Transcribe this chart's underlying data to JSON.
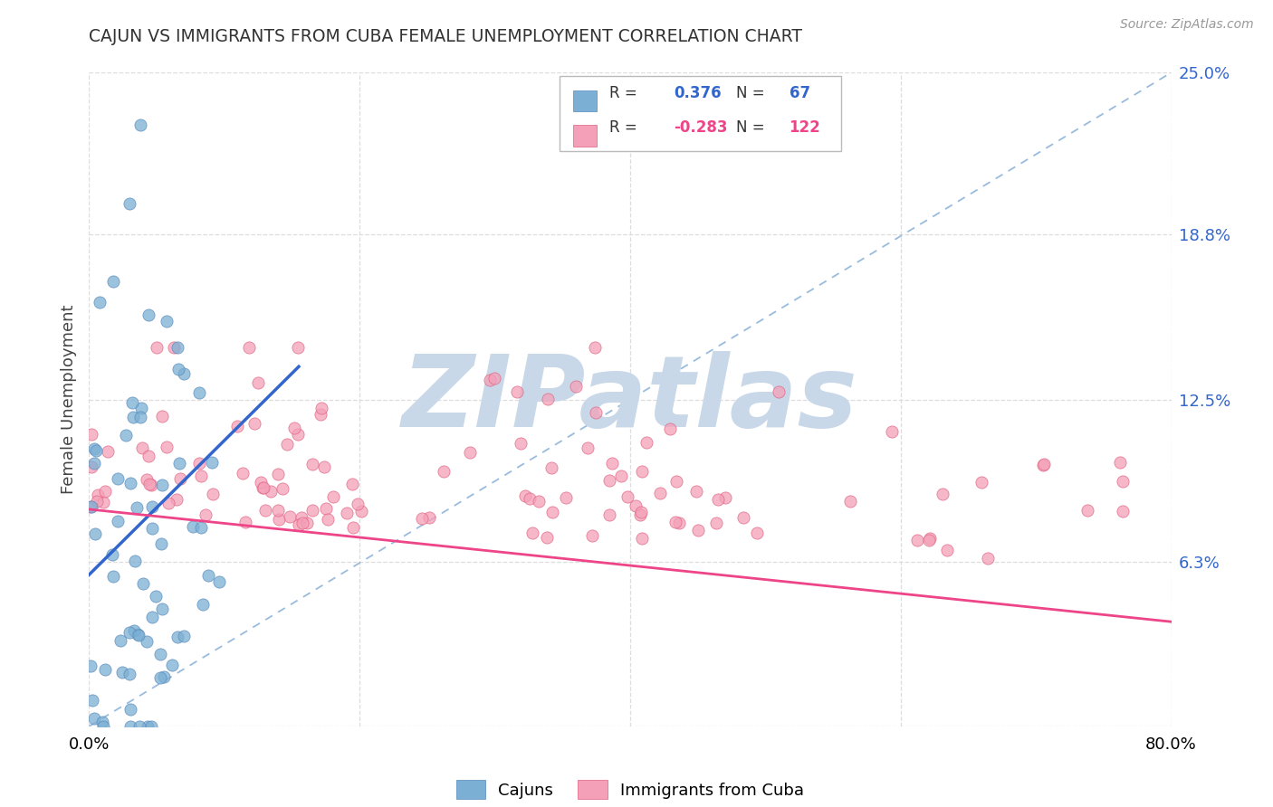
{
  "title": "CAJUN VS IMMIGRANTS FROM CUBA FEMALE UNEMPLOYMENT CORRELATION CHART",
  "source": "Source: ZipAtlas.com",
  "ylabel": "Female Unemployment",
  "xlim": [
    0,
    0.8
  ],
  "ylim": [
    0,
    0.25
  ],
  "xtick_values": [
    0.0,
    0.2,
    0.4,
    0.6,
    0.8
  ],
  "xticklabels": [
    "0.0%",
    "",
    "",
    "",
    "80.0%"
  ],
  "ytick_right_values": [
    0.0,
    0.063,
    0.125,
    0.188,
    0.25
  ],
  "ytick_right_labels": [
    "",
    "6.3%",
    "12.5%",
    "18.8%",
    "25.0%"
  ],
  "cajun_color": "#7BAFD4",
  "cajun_edge_color": "#5588BB",
  "cuba_color": "#F4A0B8",
  "cuba_edge_color": "#E06080",
  "cajun_line_color": "#3366CC",
  "cuba_line_color": "#EE4488",
  "diag_color": "#99BBDD",
  "cajun_R": 0.376,
  "cajun_N": 67,
  "cuba_R": -0.283,
  "cuba_N": 122,
  "background_color": "#ffffff",
  "grid_color": "#dddddd",
  "watermark_text": "ZIPatlas",
  "watermark_color": "#C8D8E8",
  "legend_R_label_color": "#333333",
  "legend_cajun_val_color": "#3366CC",
  "legend_cuba_val_color": "#EE4488",
  "legend_box_edge": "#BBBBBB"
}
